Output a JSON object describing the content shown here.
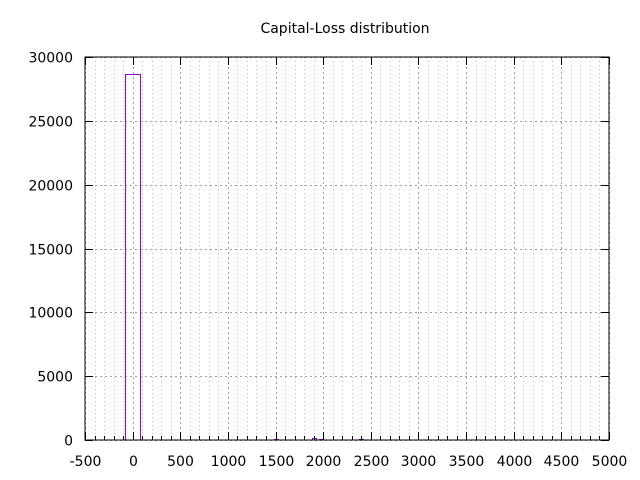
{
  "chart_data": {
    "type": "bar",
    "title": "Capital-Loss distribution",
    "xlabel": "",
    "ylabel": "",
    "xlim": [
      -500,
      5000
    ],
    "ylim": [
      0,
      30000
    ],
    "x_ticks": [
      -500,
      0,
      500,
      1000,
      1500,
      2000,
      2500,
      3000,
      3500,
      4000,
      4500,
      5000
    ],
    "x_minor_step": 100,
    "y_ticks": [
      0,
      5000,
      10000,
      15000,
      20000,
      25000,
      30000
    ],
    "grid": true,
    "bar_color": "#9400d3",
    "bins": [
      {
        "x0": -80,
        "x1": 80,
        "count": 28700
      },
      {
        "x0": 1480,
        "x1": 1520,
        "count": 80
      },
      {
        "x0": 1880,
        "x1": 1920,
        "count": 120
      },
      {
        "x0": 1960,
        "x1": 2000,
        "count": 60
      },
      {
        "x0": 2380,
        "x1": 2420,
        "count": 40
      }
    ]
  }
}
